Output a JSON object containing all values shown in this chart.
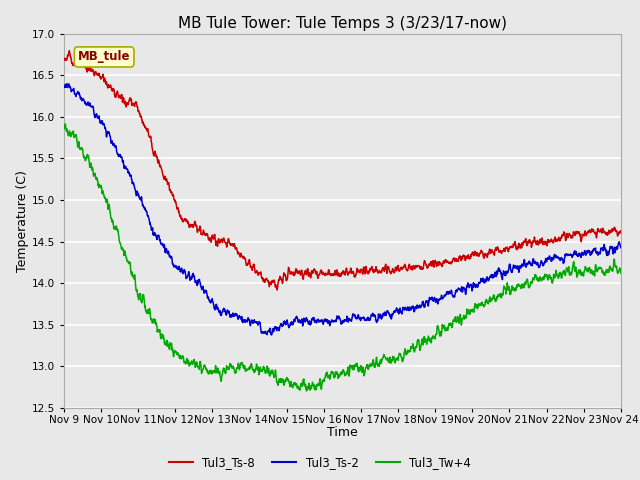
{
  "title": "MB Tule Tower: Tule Temps 3 (3/23/17-now)",
  "xlabel": "Time",
  "ylabel": "Temperature (C)",
  "ylim": [
    12.5,
    17.0
  ],
  "yticks": [
    12.5,
    13.0,
    13.5,
    14.0,
    14.5,
    15.0,
    15.5,
    16.0,
    16.5,
    17.0
  ],
  "xtick_labels": [
    "Nov 9",
    "Nov 10",
    "Nov 11",
    "Nov 12",
    "Nov 13",
    "Nov 14",
    "Nov 15",
    "Nov 16",
    "Nov 17",
    "Nov 18",
    "Nov 19",
    "Nov 20",
    "Nov 21",
    "Nov 22",
    "Nov 23",
    "Nov 24"
  ],
  "line_colors": [
    "#cc0000",
    "#0000cc",
    "#00aa00"
  ],
  "line_labels": [
    "Tul3_Ts-8",
    "Tul3_Ts-2",
    "Tul3_Tw+4"
  ],
  "line_width": 1.1,
  "fig_bg_color": "#e8e8e8",
  "plot_bg_color": "#e8e8e8",
  "grid_color": "#ffffff",
  "legend_box_facecolor": "#ffffcc",
  "legend_box_edgecolor": "#aaaa00",
  "legend_text": "MB_tule",
  "title_fontsize": 11,
  "axis_label_fontsize": 9,
  "tick_fontsize": 7.5
}
